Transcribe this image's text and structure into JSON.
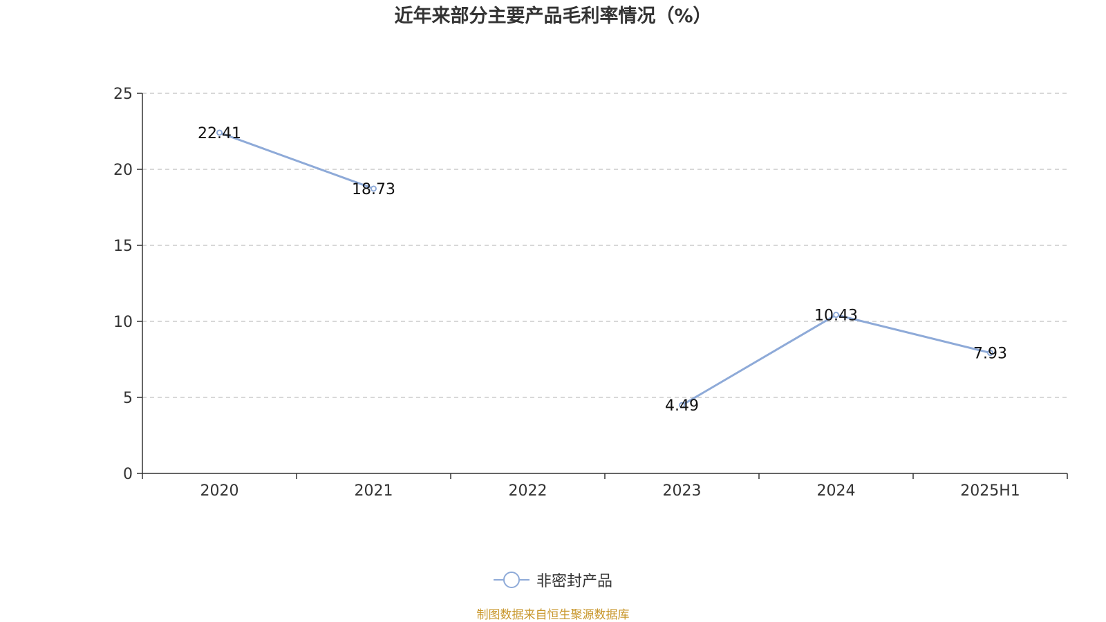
{
  "chart_data": {
    "type": "line",
    "title": "近年来部分主要产品毛利率情况（%）",
    "categories": [
      "2020",
      "2021",
      "2022",
      "2023",
      "2024",
      "2025H1"
    ],
    "series": [
      {
        "name": "非密封产品",
        "values": [
          22.41,
          18.73,
          null,
          4.49,
          10.43,
          7.93
        ],
        "labels": [
          "22.41",
          "18.73",
          "",
          "4.49",
          "10.43",
          "7.93"
        ],
        "color": "#8eaad8"
      }
    ],
    "y_ticks": [
      "0",
      "5",
      "10",
      "15",
      "20",
      "25"
    ],
    "ylim": [
      0,
      25
    ],
    "grid": "horizontal dashed",
    "legend_position": "bottom-center"
  },
  "footer": {
    "source": "制图数据来自恒生聚源数据库"
  }
}
